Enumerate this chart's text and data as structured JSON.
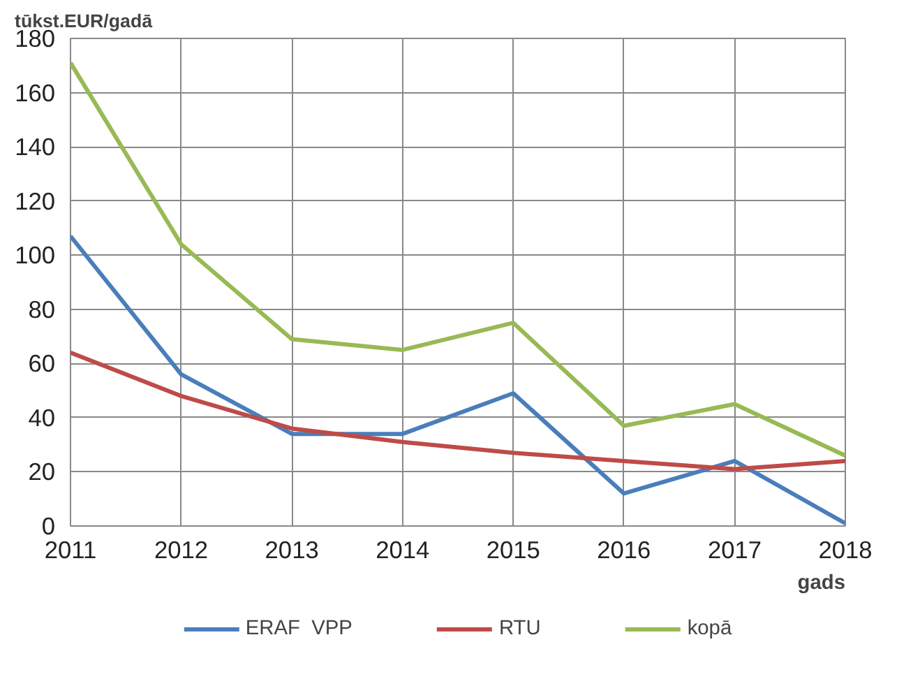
{
  "chart_data": {
    "type": "line",
    "ylabel": "tūkst.EUR/gadā",
    "xlabel": "gads",
    "x": [
      2011,
      2012,
      2013,
      2014,
      2015,
      2016,
      2017,
      2018
    ],
    "series": [
      {
        "name": "ERAF  VPP",
        "color": "#4a7ebb",
        "values": [
          107,
          56,
          34,
          34,
          49,
          12,
          24,
          1
        ]
      },
      {
        "name": "RTU",
        "color": "#be4b48",
        "values": [
          64,
          48,
          36,
          31,
          27,
          24,
          21,
          24
        ]
      },
      {
        "name": "kopā",
        "color": "#98b954",
        "values": [
          171,
          104,
          69,
          65,
          75,
          37,
          45,
          26
        ]
      }
    ],
    "xlim": [
      2011,
      2018
    ],
    "xticks": [
      2011,
      2012,
      2013,
      2014,
      2015,
      2016,
      2017,
      2018
    ],
    "ylim": [
      0,
      180
    ],
    "yticks": [
      0,
      20,
      40,
      60,
      80,
      100,
      120,
      140,
      160,
      180
    ],
    "grid": true,
    "legend": "bottom",
    "marker": "none",
    "line_style": "solid"
  }
}
